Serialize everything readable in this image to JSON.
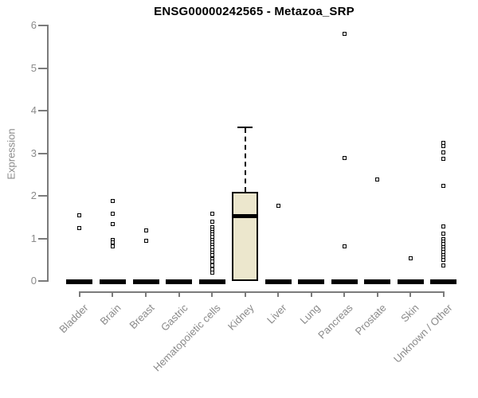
{
  "title": "ENSG00000242565 - Metazoa_SRP",
  "ylabel": "Expression",
  "colors": {
    "box_fill": "#ece7cd",
    "box_stroke": "#000000",
    "axis_line": "#7b7b7b",
    "axis_text": "#8a8a8a",
    "title_text": "#000000",
    "background": "#ffffff"
  },
  "chart_data": {
    "type": "boxplot",
    "title": "ENSG00000242565 - Metazoa_SRP",
    "xlabel": "",
    "ylabel": "Expression",
    "ylim": [
      0,
      6
    ],
    "yticks": [
      "0",
      "1",
      "2",
      "3",
      "4",
      "5",
      "6"
    ],
    "grid": "off",
    "legend": "none",
    "categories": [
      "Bladder",
      "Brain",
      "Breast",
      "Gastric",
      "Hematopoietic cells",
      "Kidney",
      "Liver",
      "Lung",
      "Pancreas",
      "Prostate",
      "Skin",
      "Unknown / Other"
    ],
    "boxes": [
      {
        "category": "Bladder",
        "q1": 0,
        "median": 0,
        "q3": 0,
        "whisker_low": 0,
        "whisker_high": 0,
        "outliers": [
          1.54,
          1.24
        ]
      },
      {
        "category": "Brain",
        "q1": 0,
        "median": 0,
        "q3": 0,
        "whisker_low": 0,
        "whisker_high": 0,
        "outliers": [
          1.89,
          1.59,
          1.33,
          0.97,
          0.9,
          0.82
        ]
      },
      {
        "category": "Breast",
        "q1": 0,
        "median": 0,
        "q3": 0,
        "whisker_low": 0,
        "whisker_high": 0,
        "outliers": [
          1.18,
          0.94
        ]
      },
      {
        "category": "Gastric",
        "q1": 0,
        "median": 0,
        "q3": 0,
        "whisker_low": 0,
        "whisker_high": 0,
        "outliers": []
      },
      {
        "category": "Hematopoietic cells",
        "q1": 0,
        "median": 0,
        "q3": 0,
        "whisker_low": 0,
        "whisker_high": 0,
        "outliers": [
          1.59,
          1.4,
          1.27,
          1.21,
          1.15,
          1.09,
          1.03,
          0.97,
          0.91,
          0.85,
          0.79,
          0.73,
          0.67,
          0.6,
          0.52,
          0.45,
          0.37,
          0.28,
          0.19
        ]
      },
      {
        "category": "Kidney",
        "q1": 0,
        "median": 1.52,
        "q3": 2.1,
        "whisker_low": 0,
        "whisker_high": 3.6,
        "outliers": []
      },
      {
        "category": "Liver",
        "q1": 0,
        "median": 0,
        "q3": 0,
        "whisker_low": 0,
        "whisker_high": 0,
        "outliers": [
          1.76
        ]
      },
      {
        "category": "Lung",
        "q1": 0,
        "median": 0,
        "q3": 0,
        "whisker_low": 0,
        "whisker_high": 0,
        "outliers": []
      },
      {
        "category": "Pancreas",
        "q1": 0,
        "median": 0,
        "q3": 0,
        "whisker_low": 0,
        "whisker_high": 0,
        "outliers": [
          5.82,
          2.9,
          0.81
        ]
      },
      {
        "category": "Prostate",
        "q1": 0,
        "median": 0,
        "q3": 0,
        "whisker_low": 0,
        "whisker_high": 0,
        "outliers": [
          2.38
        ]
      },
      {
        "category": "Skin",
        "q1": 0,
        "median": 0,
        "q3": 0,
        "whisker_low": 0,
        "whisker_high": 0,
        "outliers": [
          0.54
        ]
      },
      {
        "category": "Unknown / Other",
        "q1": 0,
        "median": 0,
        "q3": 0,
        "whisker_low": 0,
        "whisker_high": 0,
        "outliers": [
          3.24,
          3.18,
          3.03,
          2.87,
          2.23,
          1.29,
          1.12,
          0.99,
          0.93,
          0.87,
          0.8,
          0.74,
          0.68,
          0.61,
          0.55,
          0.49,
          0.37
        ]
      }
    ]
  }
}
